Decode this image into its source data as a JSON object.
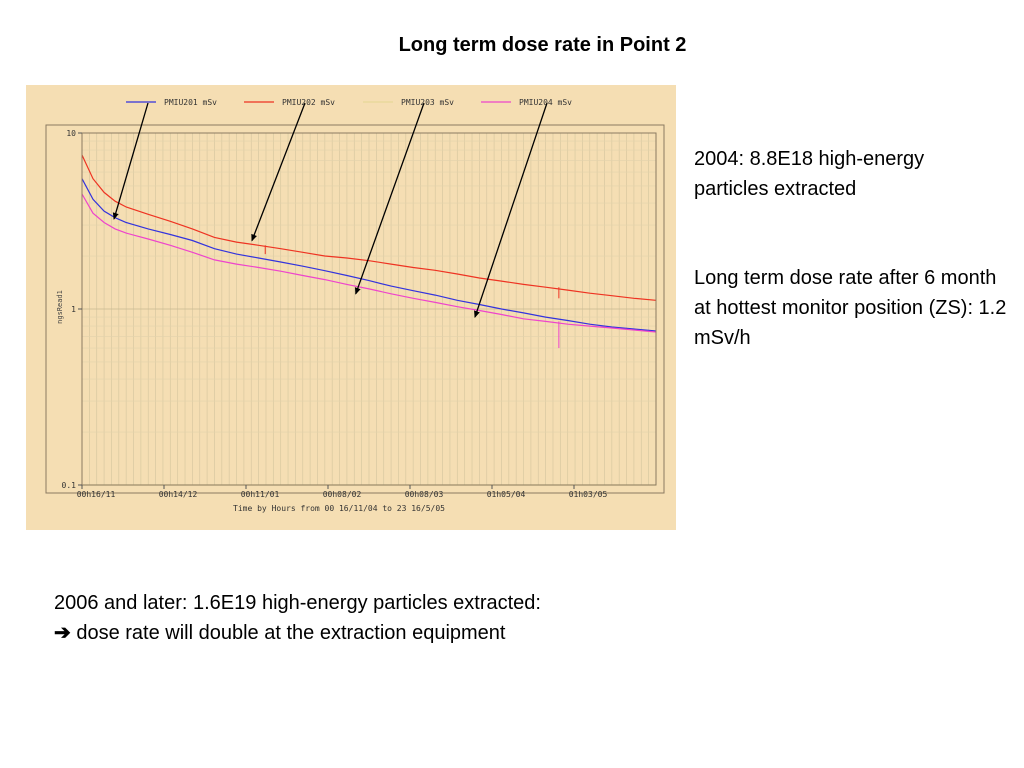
{
  "slide": {
    "title": "Long term dose rate in Point 2",
    "note_2004": "2004: 8.8E18 high-energy particles extracted",
    "note_longterm": "Long term dose rate after 6 month at hottest monitor position (ZS): 1.2 mSv/h",
    "note_2006_line1": "2006 and later: 1.6E19 high-energy particles extracted:",
    "note_2006_arrow": "➔",
    "note_2006_line2": "dose rate will double at the extraction equipment"
  },
  "chart_data": {
    "type": "line",
    "xlabel": "Time by Hours  from 00 16/11/04 to 23 16/5/05",
    "ylabel": "ngsRead1",
    "yscale": "log",
    "ylim": [
      0.1,
      10
    ],
    "y_ticks": [
      "10",
      "1",
      "0.1"
    ],
    "x_ticks": [
      "00h16/11",
      "00h14/12",
      "00h11/01",
      "00h08/02",
      "00h08/03",
      "01h05/04",
      "01h03/05"
    ],
    "grid": true,
    "background": "#f5deb3",
    "legend_position": "top",
    "series": [
      {
        "name": "PMIU201  mSv",
        "color": "#3333dd",
        "x": [
          0.0,
          0.5,
          1,
          1.5,
          2,
          3,
          4,
          5,
          6,
          7,
          8,
          9,
          10,
          11,
          12,
          13,
          14,
          15,
          16,
          17,
          18,
          19,
          20,
          21,
          22,
          23,
          24,
          25,
          26
        ],
        "values": [
          5.5,
          4.2,
          3.6,
          3.3,
          3.1,
          2.85,
          2.65,
          2.45,
          2.2,
          2.05,
          1.95,
          1.85,
          1.75,
          1.65,
          1.55,
          1.45,
          1.35,
          1.27,
          1.2,
          1.12,
          1.06,
          1.0,
          0.95,
          0.9,
          0.86,
          0.82,
          0.79,
          0.77,
          0.75
        ]
      },
      {
        "name": "PMIU202  mSv",
        "color": "#ee3322",
        "x": [
          0.0,
          0.5,
          1,
          1.5,
          2,
          3,
          4,
          5,
          6,
          7,
          8,
          9,
          10,
          11,
          12,
          13,
          14,
          15,
          16,
          17,
          18,
          19,
          20,
          21,
          22,
          23,
          24,
          25,
          26
        ],
        "values": [
          7.5,
          5.5,
          4.6,
          4.1,
          3.8,
          3.45,
          3.15,
          2.85,
          2.55,
          2.4,
          2.3,
          2.2,
          2.1,
          2.0,
          1.95,
          1.88,
          1.8,
          1.72,
          1.66,
          1.58,
          1.5,
          1.44,
          1.38,
          1.33,
          1.28,
          1.23,
          1.19,
          1.15,
          1.12
        ]
      },
      {
        "name": "PMIU203  mSv",
        "color": "#e8d898",
        "x": [
          0.0,
          2,
          4,
          6,
          8,
          10,
          12,
          14,
          16,
          18,
          20,
          22,
          24,
          26
        ],
        "values": [
          0.1,
          0.1,
          0.1,
          0.1,
          0.1,
          0.1,
          0.1,
          0.1,
          0.1,
          0.1,
          0.1,
          0.1,
          0.1,
          0.1
        ]
      },
      {
        "name": "PMIU204  mSv",
        "color": "#ee44cc",
        "x": [
          0.0,
          0.5,
          1,
          1.5,
          2,
          3,
          4,
          5,
          6,
          7,
          8,
          9,
          10,
          11,
          12,
          13,
          14,
          15,
          16,
          17,
          18,
          19,
          20,
          21,
          22,
          23,
          24,
          25,
          26
        ],
        "values": [
          4.5,
          3.5,
          3.1,
          2.85,
          2.7,
          2.5,
          2.3,
          2.1,
          1.9,
          1.8,
          1.72,
          1.64,
          1.55,
          1.47,
          1.38,
          1.3,
          1.22,
          1.15,
          1.09,
          1.03,
          0.98,
          0.93,
          0.88,
          0.85,
          0.82,
          0.8,
          0.78,
          0.76,
          0.74
        ]
      }
    ],
    "annotations": "black arrows from each legend entry to its curve"
  }
}
